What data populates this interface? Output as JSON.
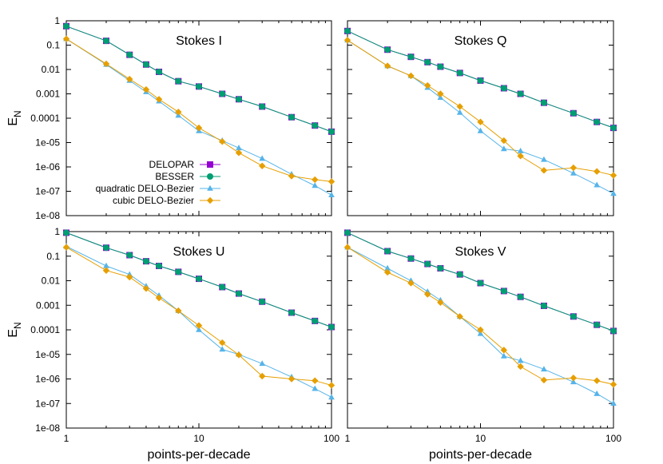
{
  "chart_data": [
    {
      "type": "line",
      "title": "Stokes I",
      "xlabel": "",
      "ylabel": "E_N",
      "xscale": "log",
      "yscale": "log",
      "xlim": [
        1,
        100
      ],
      "ylim": [
        1e-08,
        1
      ],
      "legend_position": "left-center",
      "series": [
        {
          "name": "DELOPAR",
          "color": "#9400d3",
          "marker": "square",
          "x": [
            1,
            2,
            3,
            4,
            5,
            7,
            10,
            15,
            20,
            30,
            50,
            75,
            100
          ],
          "y": [
            0.6,
            0.15,
            0.04,
            0.016,
            0.008,
            0.0033,
            0.002,
            0.001,
            0.0006,
            0.0003,
            0.00011,
            5e-05,
            2.8e-05
          ]
        },
        {
          "name": "BESSER",
          "color": "#009e73",
          "marker": "circle",
          "x": [
            1,
            2,
            3,
            4,
            5,
            7,
            10,
            15,
            20,
            30,
            50,
            75,
            100
          ],
          "y": [
            0.6,
            0.15,
            0.04,
            0.016,
            0.008,
            0.0033,
            0.002,
            0.001,
            0.0006,
            0.0003,
            0.00011,
            5e-05,
            2.8e-05
          ]
        },
        {
          "name": "quadratic DELO-Bezier",
          "color": "#56b4e9",
          "marker": "triangle",
          "x": [
            1,
            2,
            3,
            4,
            5,
            7,
            10,
            15,
            20,
            30,
            50,
            75,
            100
          ],
          "y": [
            0.18,
            0.016,
            0.0035,
            0.0012,
            0.0005,
            0.00013,
            3e-05,
            1.2e-05,
            6e-06,
            2.2e-06,
            5e-07,
            1.7e-07,
            7e-08
          ]
        },
        {
          "name": "cubic DELO-Bezier",
          "color": "#e69f00",
          "marker": "diamond",
          "x": [
            1,
            2,
            3,
            4,
            5,
            7,
            10,
            15,
            20,
            30,
            50,
            75,
            100
          ],
          "y": [
            0.18,
            0.017,
            0.004,
            0.0015,
            0.0006,
            0.00018,
            4e-05,
            1.1e-05,
            3.8e-06,
            1.1e-06,
            4.2e-07,
            3e-07,
            2.5e-07
          ]
        }
      ]
    },
    {
      "type": "line",
      "title": "Stokes Q",
      "xlabel": "",
      "ylabel": "",
      "xscale": "log",
      "yscale": "log",
      "xlim": [
        1,
        100
      ],
      "ylim": [
        1e-08,
        1
      ],
      "series": [
        {
          "name": "DELOPAR",
          "color": "#9400d3",
          "marker": "square",
          "x": [
            1,
            2,
            3,
            4,
            5,
            7,
            10,
            15,
            20,
            30,
            50,
            75,
            100
          ],
          "y": [
            0.38,
            0.065,
            0.033,
            0.02,
            0.013,
            0.0072,
            0.0035,
            0.0017,
            0.001,
            0.00043,
            0.00016,
            7e-05,
            4e-05
          ]
        },
        {
          "name": "BESSER",
          "color": "#009e73",
          "marker": "circle",
          "x": [
            1,
            2,
            3,
            4,
            5,
            7,
            10,
            15,
            20,
            30,
            50,
            75,
            100
          ],
          "y": [
            0.38,
            0.065,
            0.033,
            0.02,
            0.013,
            0.0072,
            0.0035,
            0.0017,
            0.001,
            0.00043,
            0.00016,
            7e-05,
            4e-05
          ]
        },
        {
          "name": "quadratic DELO-Bezier",
          "color": "#56b4e9",
          "marker": "triangle",
          "x": [
            1,
            2,
            3,
            4,
            5,
            7,
            10,
            15,
            20,
            30,
            50,
            75,
            100
          ],
          "y": [
            0.16,
            0.014,
            0.0055,
            0.0018,
            0.0007,
            0.00017,
            3e-05,
            5.5e-06,
            4.5e-06,
            2e-06,
            5.5e-07,
            1.8e-07,
            8e-08
          ]
        },
        {
          "name": "cubic DELO-Bezier",
          "color": "#e69f00",
          "marker": "diamond",
          "x": [
            1,
            2,
            3,
            4,
            5,
            7,
            10,
            15,
            20,
            30,
            50,
            75,
            100
          ],
          "y": [
            0.16,
            0.014,
            0.0055,
            0.0022,
            0.001,
            0.0003,
            7e-05,
            1.2e-05,
            2.8e-06,
            7.2e-07,
            9.2e-07,
            6.5e-07,
            4.5e-07
          ]
        }
      ]
    },
    {
      "type": "line",
      "title": "Stokes U",
      "xlabel": "points-per-decade",
      "ylabel": "E_N",
      "xscale": "log",
      "yscale": "log",
      "xlim": [
        1,
        100
      ],
      "ylim": [
        1e-08,
        1
      ],
      "series": [
        {
          "name": "DELOPAR",
          "color": "#9400d3",
          "marker": "square",
          "x": [
            1,
            2,
            3,
            4,
            5,
            7,
            10,
            15,
            20,
            30,
            50,
            75,
            100
          ],
          "y": [
            0.9,
            0.22,
            0.11,
            0.062,
            0.04,
            0.023,
            0.012,
            0.0055,
            0.003,
            0.0014,
            0.0005,
            0.00023,
            0.00013
          ]
        },
        {
          "name": "BESSER",
          "color": "#009e73",
          "marker": "circle",
          "x": [
            1,
            2,
            3,
            4,
            5,
            7,
            10,
            15,
            20,
            30,
            50,
            75,
            100
          ],
          "y": [
            0.9,
            0.22,
            0.11,
            0.062,
            0.04,
            0.023,
            0.012,
            0.0055,
            0.003,
            0.0014,
            0.0005,
            0.00023,
            0.00013
          ]
        },
        {
          "name": "quadratic DELO-Bezier",
          "color": "#56b4e9",
          "marker": "triangle",
          "x": [
            1,
            2,
            3,
            4,
            5,
            7,
            10,
            15,
            20,
            30,
            50,
            75,
            100
          ],
          "y": [
            0.25,
            0.04,
            0.018,
            0.006,
            0.0025,
            0.0006,
            0.0001,
            1.6e-05,
            1e-05,
            4.2e-06,
            1.2e-06,
            4e-07,
            1.8e-07
          ]
        },
        {
          "name": "cubic DELO-Bezier",
          "color": "#e69f00",
          "marker": "diamond",
          "x": [
            1,
            2,
            3,
            4,
            5,
            7,
            10,
            15,
            20,
            30,
            50,
            75,
            100
          ],
          "y": [
            0.23,
            0.026,
            0.014,
            0.0048,
            0.002,
            0.0006,
            0.00015,
            3e-05,
            9.5e-06,
            1.3e-06,
            1e-06,
            8.5e-07,
            5.5e-07
          ]
        }
      ]
    },
    {
      "type": "line",
      "title": "Stokes V",
      "xlabel": "points-per-decade",
      "ylabel": "",
      "xscale": "log",
      "yscale": "log",
      "xlim": [
        1,
        100
      ],
      "ylim": [
        1e-08,
        1
      ],
      "series": [
        {
          "name": "DELOPAR",
          "color": "#9400d3",
          "marker": "square",
          "x": [
            1,
            2,
            3,
            4,
            5,
            7,
            10,
            15,
            20,
            30,
            50,
            75,
            100
          ],
          "y": [
            0.9,
            0.16,
            0.08,
            0.048,
            0.032,
            0.018,
            0.008,
            0.0038,
            0.0022,
            0.00095,
            0.00035,
            0.00016,
            9e-05
          ]
        },
        {
          "name": "BESSER",
          "color": "#009e73",
          "marker": "circle",
          "x": [
            1,
            2,
            3,
            4,
            5,
            7,
            10,
            15,
            20,
            30,
            50,
            75,
            100
          ],
          "y": [
            0.9,
            0.16,
            0.08,
            0.048,
            0.032,
            0.018,
            0.008,
            0.0038,
            0.0022,
            0.00095,
            0.00035,
            0.00016,
            9e-05
          ]
        },
        {
          "name": "quadratic DELO-Bezier",
          "color": "#56b4e9",
          "marker": "triangle",
          "x": [
            1,
            2,
            3,
            4,
            5,
            7,
            10,
            15,
            20,
            30,
            50,
            75,
            100
          ],
          "y": [
            0.23,
            0.032,
            0.01,
            0.0036,
            0.0016,
            0.00035,
            7e-05,
            8.5e-06,
            5.5e-06,
            2.5e-06,
            7.5e-07,
            2.5e-07,
            1e-07
          ]
        },
        {
          "name": "cubic DELO-Bezier",
          "color": "#e69f00",
          "marker": "diamond",
          "x": [
            1,
            2,
            3,
            4,
            5,
            7,
            10,
            15,
            20,
            30,
            50,
            75,
            100
          ],
          "y": [
            0.23,
            0.022,
            0.008,
            0.0028,
            0.0013,
            0.00035,
            0.0001,
            1.5e-05,
            3.2e-06,
            9e-07,
            1.1e-06,
            8.5e-07,
            6e-07
          ]
        }
      ]
    }
  ],
  "y_ticks": [
    "1e-08",
    "1e-07",
    "1e-06",
    "1e-05",
    "0.0001",
    "0.001",
    "0.01",
    "0.1",
    "1"
  ],
  "x_ticks": [
    "1",
    "10",
    "100"
  ]
}
